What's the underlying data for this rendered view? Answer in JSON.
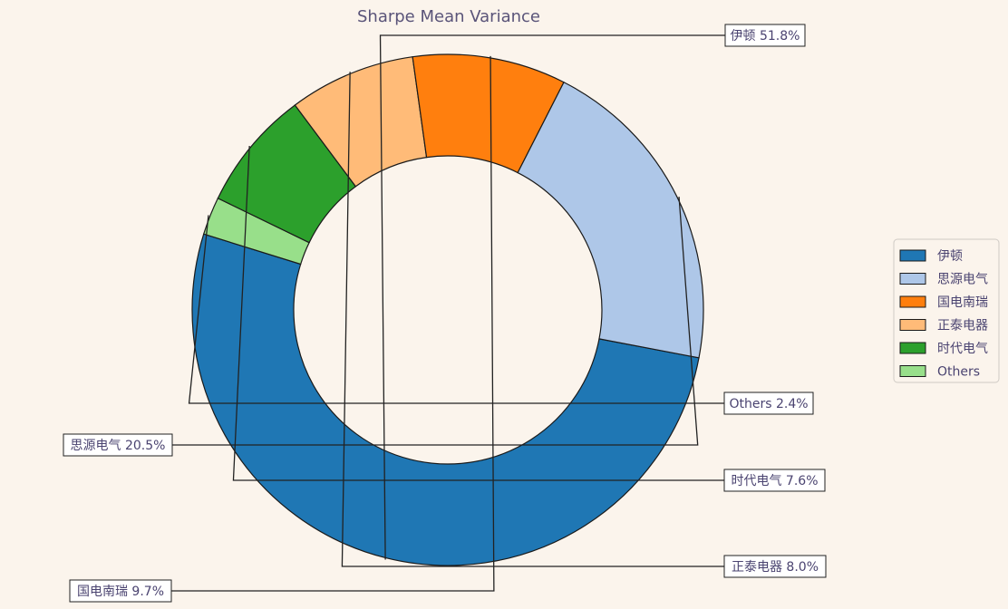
{
  "chart_data": {
    "type": "pie",
    "variant": "donut",
    "title": "Sharpe Mean Variance",
    "slices": [
      {
        "label": "伊顿",
        "value": 51.8,
        "color": "#1f77b4",
        "annotation": "伊顿 51.8%"
      },
      {
        "label": "Others",
        "value": 2.4,
        "color": "#98df8a",
        "annotation": "Others 2.4%"
      },
      {
        "label": "时代电气",
        "value": 7.6,
        "color": "#2ca02c",
        "annotation": "时代电气 7.6%"
      },
      {
        "label": "正泰电器",
        "value": 8.0,
        "color": "#ffbb78",
        "annotation": "正泰电器 8.0%"
      },
      {
        "label": "国电南瑞",
        "value": 9.7,
        "color": "#ff7f0e",
        "annotation": "国电南瑞 9.7%"
      },
      {
        "label": "思源电气",
        "value": 20.5,
        "color": "#aec7e8",
        "annotation": "思源电气 20.5%"
      }
    ],
    "legend": {
      "position": "right",
      "entries": [
        {
          "label": "伊顿",
          "color": "#1f77b4"
        },
        {
          "label": "思源电气",
          "color": "#aec7e8"
        },
        {
          "label": "国电南瑞",
          "color": "#ff7f0e"
        },
        {
          "label": "正泰电器",
          "color": "#ffbb78"
        },
        {
          "label": "时代电气",
          "color": "#2ca02c"
        },
        {
          "label": "Others",
          "color": "#98df8a"
        }
      ]
    },
    "background_color": "#fbf4ec",
    "text_color": "#4a4370"
  }
}
